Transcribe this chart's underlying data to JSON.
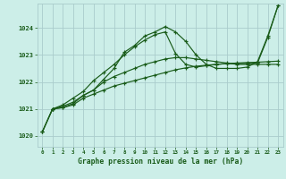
{
  "title": "Graphe pression niveau de la mer (hPa)",
  "bg_color": "#cceee8",
  "grid_color": "#aacccc",
  "line_color": "#1a5c1a",
  "x_min": -0.5,
  "x_max": 23.5,
  "y_min": 1019.6,
  "y_max": 1024.9,
  "yticks": [
    1020,
    1021,
    1022,
    1023,
    1024
  ],
  "xticks": [
    0,
    1,
    2,
    3,
    4,
    5,
    6,
    7,
    8,
    9,
    10,
    11,
    12,
    13,
    14,
    15,
    16,
    17,
    18,
    19,
    20,
    21,
    22,
    23
  ],
  "series1_x": [
    0,
    1,
    2,
    3,
    4,
    5,
    6,
    7,
    8,
    9,
    10,
    11,
    12,
    13,
    14,
    15,
    16,
    17,
    18,
    19,
    20,
    21,
    22,
    23
  ],
  "series1_y": [
    1020.15,
    1021.0,
    1021.05,
    1021.2,
    1021.5,
    1021.7,
    1022.1,
    1022.5,
    1023.1,
    1023.35,
    1023.7,
    1023.85,
    1024.05,
    1023.85,
    1023.5,
    1023.0,
    1022.65,
    1022.5,
    1022.5,
    1022.5,
    1022.55,
    1022.75,
    1023.7,
    1024.82
  ],
  "series2_x": [
    0,
    1,
    2,
    3,
    4,
    5,
    6,
    7,
    8,
    9,
    10,
    11,
    12,
    13,
    14,
    15,
    16,
    17,
    18,
    19,
    20,
    21,
    22,
    23
  ],
  "series2_y": [
    1020.15,
    1021.0,
    1021.1,
    1021.25,
    1021.5,
    1021.7,
    1022.0,
    1022.2,
    1022.35,
    1022.5,
    1022.65,
    1022.75,
    1022.85,
    1022.9,
    1022.9,
    1022.85,
    1022.8,
    1022.75,
    1022.7,
    1022.65,
    1022.65,
    1022.65,
    1022.65,
    1022.65
  ],
  "series3_x": [
    0,
    1,
    2,
    3,
    4,
    5,
    6,
    7,
    8,
    9,
    10,
    11,
    12,
    13,
    14,
    15,
    16,
    17,
    18,
    19,
    20,
    21,
    22,
    23
  ],
  "series3_y": [
    1020.15,
    1021.0,
    1021.05,
    1021.15,
    1021.4,
    1021.55,
    1021.7,
    1021.85,
    1021.95,
    1022.05,
    1022.15,
    1022.25,
    1022.35,
    1022.45,
    1022.52,
    1022.58,
    1022.62,
    1022.65,
    1022.68,
    1022.7,
    1022.72,
    1022.73,
    1022.75,
    1022.77
  ],
  "series4_x": [
    1,
    2,
    3,
    4,
    5,
    6,
    7,
    8,
    9,
    10,
    11,
    12,
    13,
    14,
    15,
    16,
    17,
    18,
    19,
    20,
    21,
    22,
    23
  ],
  "series4_y": [
    1021.0,
    1021.15,
    1021.4,
    1021.65,
    1022.05,
    1022.35,
    1022.65,
    1023.0,
    1023.3,
    1023.55,
    1023.75,
    1023.85,
    1023.05,
    1022.65,
    1022.55,
    1022.6,
    1022.65,
    1022.68,
    1022.68,
    1022.68,
    1022.7,
    1023.65,
    1024.82
  ]
}
